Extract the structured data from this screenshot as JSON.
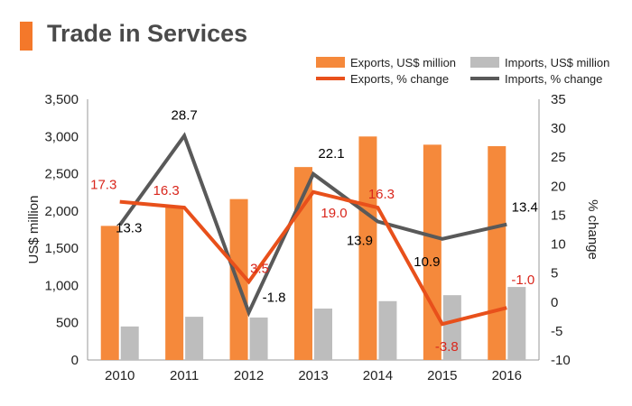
{
  "title": "Trade in Services",
  "colors": {
    "accent": "#f4782a",
    "exports_bar": "#f5893b",
    "imports_bar": "#bdbdbd",
    "exports_line": "#e8501b",
    "imports_line": "#595959",
    "exports_label": "#d9261c",
    "imports_label": "#000000"
  },
  "chart_data": {
    "type": "bar+line",
    "categories": [
      "2010",
      "2011",
      "2012",
      "2013",
      "2014",
      "2015",
      "2016"
    ],
    "series": [
      {
        "name": "Exports, US$ million",
        "kind": "bar",
        "axis": "left",
        "values": [
          1800,
          2050,
          2160,
          2590,
          3000,
          2890,
          2870
        ]
      },
      {
        "name": "Imports, US$ million",
        "kind": "bar",
        "axis": "left",
        "values": [
          450,
          580,
          570,
          690,
          790,
          870,
          980
        ]
      },
      {
        "name": "Exports, % change",
        "kind": "line",
        "axis": "right",
        "values": [
          17.3,
          16.3,
          3.5,
          19.0,
          16.3,
          -3.8,
          -1.0
        ],
        "labels": [
          "17.3",
          "16.3",
          "3.5",
          "19.0",
          "16.3",
          "-3.8",
          "-1.0"
        ]
      },
      {
        "name": "Imports, % change",
        "kind": "line",
        "axis": "right",
        "values": [
          13.3,
          28.7,
          -1.8,
          22.1,
          13.9,
          10.9,
          13.4
        ],
        "labels": [
          "13.3",
          "28.7",
          "-1.8",
          "22.1",
          "13.9",
          "10.9",
          "13.4"
        ]
      }
    ],
    "ylabel": "US$ million",
    "y2label": "% change",
    "ylim": [
      0,
      3500
    ],
    "y2lim": [
      -10,
      35
    ],
    "yticks": [
      "0",
      "500",
      "1,000",
      "1,500",
      "2,000",
      "2,500",
      "3,000",
      "3,500"
    ],
    "y2ticks": [
      "-10",
      "-5",
      "0",
      "5",
      "10",
      "15",
      "20",
      "25",
      "30",
      "35"
    ],
    "legend": [
      "Exports, US$ million",
      "Imports, US$ million",
      "Exports, % change",
      "Imports, % change"
    ],
    "legend_position": "top-right",
    "grid": false
  }
}
